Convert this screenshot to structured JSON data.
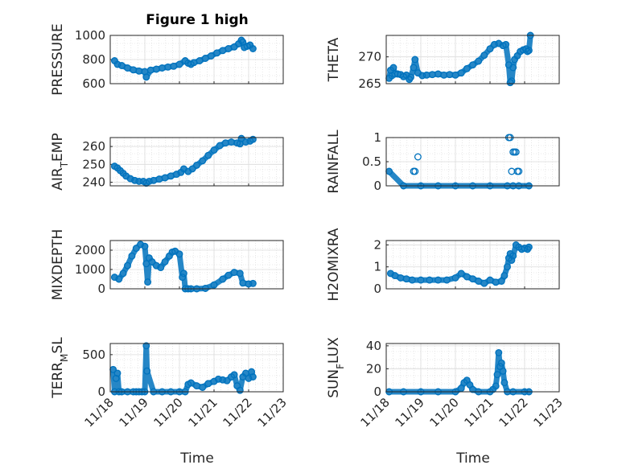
{
  "figure": {
    "title": "Figure 1 high",
    "xlabel": "Time",
    "x_tick_labels": [
      "11/18",
      "11/19",
      "11/20",
      "11/21",
      "11/22",
      "11/23"
    ]
  },
  "chart_data": [
    {
      "type": "scatter",
      "ylabel": "PRESSURE",
      "title": "Figure 1 high",
      "ylim": [
        600,
        1000
      ],
      "yticks": [
        600,
        800,
        1000
      ],
      "grid": true,
      "series": [
        {
          "x": [
            "11/18 03:00",
            "11/18 05:00",
            "11/18 08:00",
            "11/18 12:00",
            "11/18 16:00",
            "11/18 20:00",
            "11/19 00:00",
            "11/19 01:00",
            "11/19 04:00",
            "11/19 08:00",
            "11/19 12:00",
            "11/19 16:00",
            "11/19 20:00",
            "11/20 00:00",
            "11/20 04:00",
            "11/20 06:00",
            "11/20 08:00",
            "11/20 10:00",
            "11/20 14:00",
            "11/20 18:00",
            "11/20 22:00",
            "11/21 02:00",
            "11/21 06:00",
            "11/21 10:00",
            "11/21 14:00",
            "11/21 17:00",
            "11/21 19:00",
            "11/21 20:00",
            "11/21 21:00",
            "11/21 23:00",
            "11/22 01:00",
            "11/22 03:00"
          ],
          "values": [
            790,
            760,
            750,
            730,
            715,
            705,
            700,
            655,
            712,
            720,
            730,
            738,
            745,
            760,
            790,
            770,
            760,
            775,
            790,
            810,
            830,
            855,
            875,
            890,
            905,
            930,
            960,
            945,
            900,
            910,
            920,
            890
          ]
        }
      ]
    },
    {
      "type": "scatter",
      "ylabel": "THETA",
      "ylim": [
        265,
        274
      ],
      "yticks": [
        265,
        270
      ],
      "grid": true,
      "series": [
        {
          "x": [
            "11/18 02:00",
            "11/18 03:00",
            "11/18 04:00",
            "11/18 05:00",
            "11/18 06:00",
            "11/18 08:00",
            "11/18 10:00",
            "11/18 12:00",
            "11/18 14:00",
            "11/18 16:00",
            "11/18 17:00",
            "11/18 19:00",
            "11/18 20:00",
            "11/18 22:00",
            "11/19 01:00",
            "11/19 04:00",
            "11/19 08:00",
            "11/19 12:00",
            "11/19 16:00",
            "11/19 20:00",
            "11/20 00:00",
            "11/20 04:00",
            "11/20 08:00",
            "11/20 12:00",
            "11/20 16:00",
            "11/20 20:00",
            "11/21 00:00",
            "11/21 03:00",
            "11/21 06:00",
            "11/21 09:00",
            "11/21 11:00",
            "11/21 13:00",
            "11/21 14:00",
            "11/21 15:00",
            "11/21 16:00",
            "11/21 17:00",
            "11/21 19:00",
            "11/21 21:00",
            "11/21 23:00",
            "11/22 01:00",
            "11/22 02:00",
            "11/22 03:00",
            "11/22 04:00"
          ],
          "values": [
            266,
            267.5,
            266.5,
            268,
            266.8,
            266.8,
            266.7,
            266.3,
            266.6,
            265.8,
            266.2,
            268,
            269.5,
            267,
            266.5,
            266.6,
            266.7,
            266.8,
            266.6,
            266.7,
            266.6,
            267,
            267.8,
            268.5,
            269.2,
            270.3,
            271.5,
            272.3,
            272.5,
            272.1,
            272.3,
            268.5,
            265.2,
            265.5,
            268,
            269.5,
            270.2,
            271,
            271.3,
            271.5,
            271,
            271.2,
            274
          ]
        }
      ]
    },
    {
      "type": "scatter",
      "ylabel": "AIR_TEMP",
      "ylim": [
        238,
        265
      ],
      "yticks": [
        240,
        250,
        260
      ],
      "grid": true,
      "series": [
        {
          "x": [
            "11/18 03:00",
            "11/18 05:00",
            "11/18 07:00",
            "11/18 09:00",
            "11/18 11:00",
            "11/18 14:00",
            "11/18 17:00",
            "11/18 20:00",
            "11/18 23:00",
            "11/19 01:00",
            "11/19 03:00",
            "11/19 06:00",
            "11/19 10:00",
            "11/19 14:00",
            "11/19 18:00",
            "11/19 22:00",
            "11/20 01:00",
            "11/20 03:00",
            "11/20 06:00",
            "11/20 09:00",
            "11/20 12:00",
            "11/20 16:00",
            "11/20 20:00",
            "11/21 00:00",
            "11/21 04:00",
            "11/21 08:00",
            "11/21 12:00",
            "11/21 16:00",
            "11/21 18:00",
            "11/21 19:00",
            "11/21 22:00",
            "11/22 01:00",
            "11/22 03:00"
          ],
          "values": [
            249,
            248,
            246.5,
            245,
            243.5,
            242,
            241,
            240.5,
            240.5,
            239.5,
            240.5,
            241,
            241.8,
            242.5,
            243.5,
            244.5,
            245.5,
            247.5,
            246,
            247.5,
            249.5,
            252,
            255,
            258,
            260.5,
            262,
            262.5,
            262,
            261.5,
            264.5,
            262.5,
            263,
            264
          ]
        }
      ]
    },
    {
      "type": "scatter",
      "ylabel": "RAINFALL",
      "ylim": [
        0,
        1
      ],
      "yticks": [
        0,
        0.5,
        1
      ],
      "grid": true,
      "series": [
        {
          "x": [
            "11/18 02:00",
            "11/18 12:00",
            "11/19 00:00",
            "11/19 12:00",
            "11/20 00:00",
            "11/20 12:00",
            "11/21 00:00",
            "11/21 12:00",
            "11/21 16:00",
            "11/21 20:00",
            "11/22 03:00",
            "11/18 19:00",
            "11/18 20:00",
            "11/18 22:00",
            "11/21 13:00",
            "11/21 14:00",
            "11/21 15:00",
            "11/21 16:00",
            "11/21 17:00",
            "11/21 18:00",
            "11/21 19:00",
            "11/21 20:00"
          ],
          "values": [
            0.3,
            0,
            0,
            0,
            0,
            0,
            0,
            0,
            0,
            0,
            0,
            0.3,
            0.3,
            0.6,
            1,
            1,
            0.3,
            0.7,
            0.7,
            0.7,
            0.3,
            0.3
          ]
        }
      ]
    },
    {
      "type": "scatter",
      "ylabel": "MIXDEPTH",
      "ylim": [
        0,
        2500
      ],
      "yticks": [
        0,
        1000,
        2000
      ],
      "grid": true,
      "series": [
        {
          "x": [
            "11/18 03:00",
            "11/18 06:00",
            "11/18 09:00",
            "11/18 12:00",
            "11/18 15:00",
            "11/18 18:00",
            "11/18 21:00",
            "11/19 00:00",
            "11/19 01:00",
            "11/19 02:00",
            "11/19 03:00",
            "11/19 05:00",
            "11/19 08:00",
            "11/19 11:00",
            "11/19 14:00",
            "11/19 17:00",
            "11/19 19:00",
            "11/19 21:00",
            "11/20 00:00",
            "11/20 02:00",
            "11/20 03:00",
            "11/20 04:00",
            "11/20 06:00",
            "11/20 08:00",
            "11/20 12:00",
            "11/20 18:00",
            "11/21 00:00",
            "11/21 06:00",
            "11/21 10:00",
            "11/21 14:00",
            "11/21 18:00",
            "11/21 20:00",
            "11/22 00:00",
            "11/22 03:00"
          ],
          "values": [
            600,
            500,
            800,
            1200,
            1700,
            2100,
            2300,
            2200,
            1300,
            350,
            1600,
            1400,
            1200,
            1100,
            1400,
            1700,
            1900,
            1950,
            1800,
            600,
            800,
            0,
            0,
            0,
            0,
            20,
            200,
            500,
            700,
            850,
            800,
            300,
            250,
            280
          ]
        }
      ]
    },
    {
      "type": "scatter",
      "ylabel": "H2OMIXRA",
      "ylim": [
        0,
        2.2
      ],
      "yticks": [
        0,
        1,
        2
      ],
      "grid": true,
      "series": [
        {
          "x": [
            "11/18 03:00",
            "11/18 06:00",
            "11/18 10:00",
            "11/18 14:00",
            "11/18 18:00",
            "11/19 00:00",
            "11/19 06:00",
            "11/19 12:00",
            "11/19 18:00",
            "11/20 00:00",
            "11/20 04:00",
            "11/20 08:00",
            "11/20 12:00",
            "11/20 16:00",
            "11/20 20:00",
            "11/21 00:00",
            "11/21 04:00",
            "11/21 08:00",
            "11/21 10:00",
            "11/21 12:00",
            "11/21 13:00",
            "11/21 14:00",
            "11/21 15:00",
            "11/21 16:00",
            "11/21 18:00",
            "11/21 20:00",
            "11/21 22:00",
            "11/22 00:00",
            "11/22 02:00",
            "11/22 03:00"
          ],
          "values": [
            0.7,
            0.6,
            0.5,
            0.45,
            0.4,
            0.4,
            0.4,
            0.4,
            0.4,
            0.5,
            0.7,
            0.55,
            0.45,
            0.35,
            0.25,
            0.4,
            0.3,
            0.35,
            0.6,
            1.0,
            1.4,
            1.6,
            1.3,
            1.5,
            2.0,
            1.9,
            1.8,
            1.85,
            1.8,
            1.9
          ]
        }
      ]
    },
    {
      "type": "scatter",
      "ylabel": "TERR_MSL",
      "ylim": [
        0,
        650
      ],
      "yticks": [
        0,
        500
      ],
      "grid": true,
      "series": [
        {
          "x": [
            "11/18 02:00",
            "11/18 03:00",
            "11/18 04:00",
            "11/18 05:00",
            "11/18 06:00",
            "11/18 08:00",
            "11/18 12:00",
            "11/18 16:00",
            "11/18 18:00",
            "11/18 20:00",
            "11/18 22:00",
            "11/19 00:00",
            "11/19 01:00",
            "11/19 01:30",
            "11/19 06:00",
            "11/19 12:00",
            "11/19 18:00",
            "11/20 00:00",
            "11/20 04:00",
            "11/20 06:00",
            "11/20 08:00",
            "11/20 12:00",
            "11/20 16:00",
            "11/20 20:00",
            "11/21 00:00",
            "11/21 03:00",
            "11/21 06:00",
            "11/21 09:00",
            "11/21 12:00",
            "11/21 14:00",
            "11/21 16:00",
            "11/21 18:00",
            "11/21 20:00",
            "11/21 22:00",
            "11/22 00:00",
            "11/22 02:00",
            "11/22 03:00"
          ],
          "values": [
            300,
            0,
            180,
            250,
            0,
            0,
            0,
            0,
            0,
            0,
            0,
            0,
            620,
            280,
            0,
            0,
            0,
            0,
            0,
            100,
            120,
            80,
            60,
            110,
            140,
            170,
            160,
            150,
            200,
            230,
            80,
            20,
            200,
            250,
            180,
            270,
            200
          ]
        }
      ]
    },
    {
      "type": "scatter",
      "ylabel": "SUN_FLUX",
      "ylim": [
        0,
        42
      ],
      "yticks": [
        0,
        20,
        40
      ],
      "grid": true,
      "series": [
        {
          "x": [
            "11/18 02:00",
            "11/18 12:00",
            "11/19 00:00",
            "11/19 12:00",
            "11/20 00:00",
            "11/20 04:00",
            "11/20 06:00",
            "11/20 08:00",
            "11/20 10:00",
            "11/20 12:00",
            "11/20 16:00",
            "11/21 00:00",
            "11/21 02:00",
            "11/21 04:00",
            "11/21 05:00",
            "11/21 06:00",
            "11/21 07:00",
            "11/21 08:00",
            "11/21 09:00",
            "11/21 10:00",
            "11/21 12:00",
            "11/21 16:00",
            "11/22 00:00",
            "11/22 03:00"
          ],
          "values": [
            0,
            0,
            0,
            0,
            0,
            3,
            8,
            10,
            6,
            2,
            0,
            0,
            2,
            5,
            15,
            34,
            22,
            25,
            18,
            8,
            0,
            0,
            0,
            0
          ]
        }
      ]
    }
  ]
}
